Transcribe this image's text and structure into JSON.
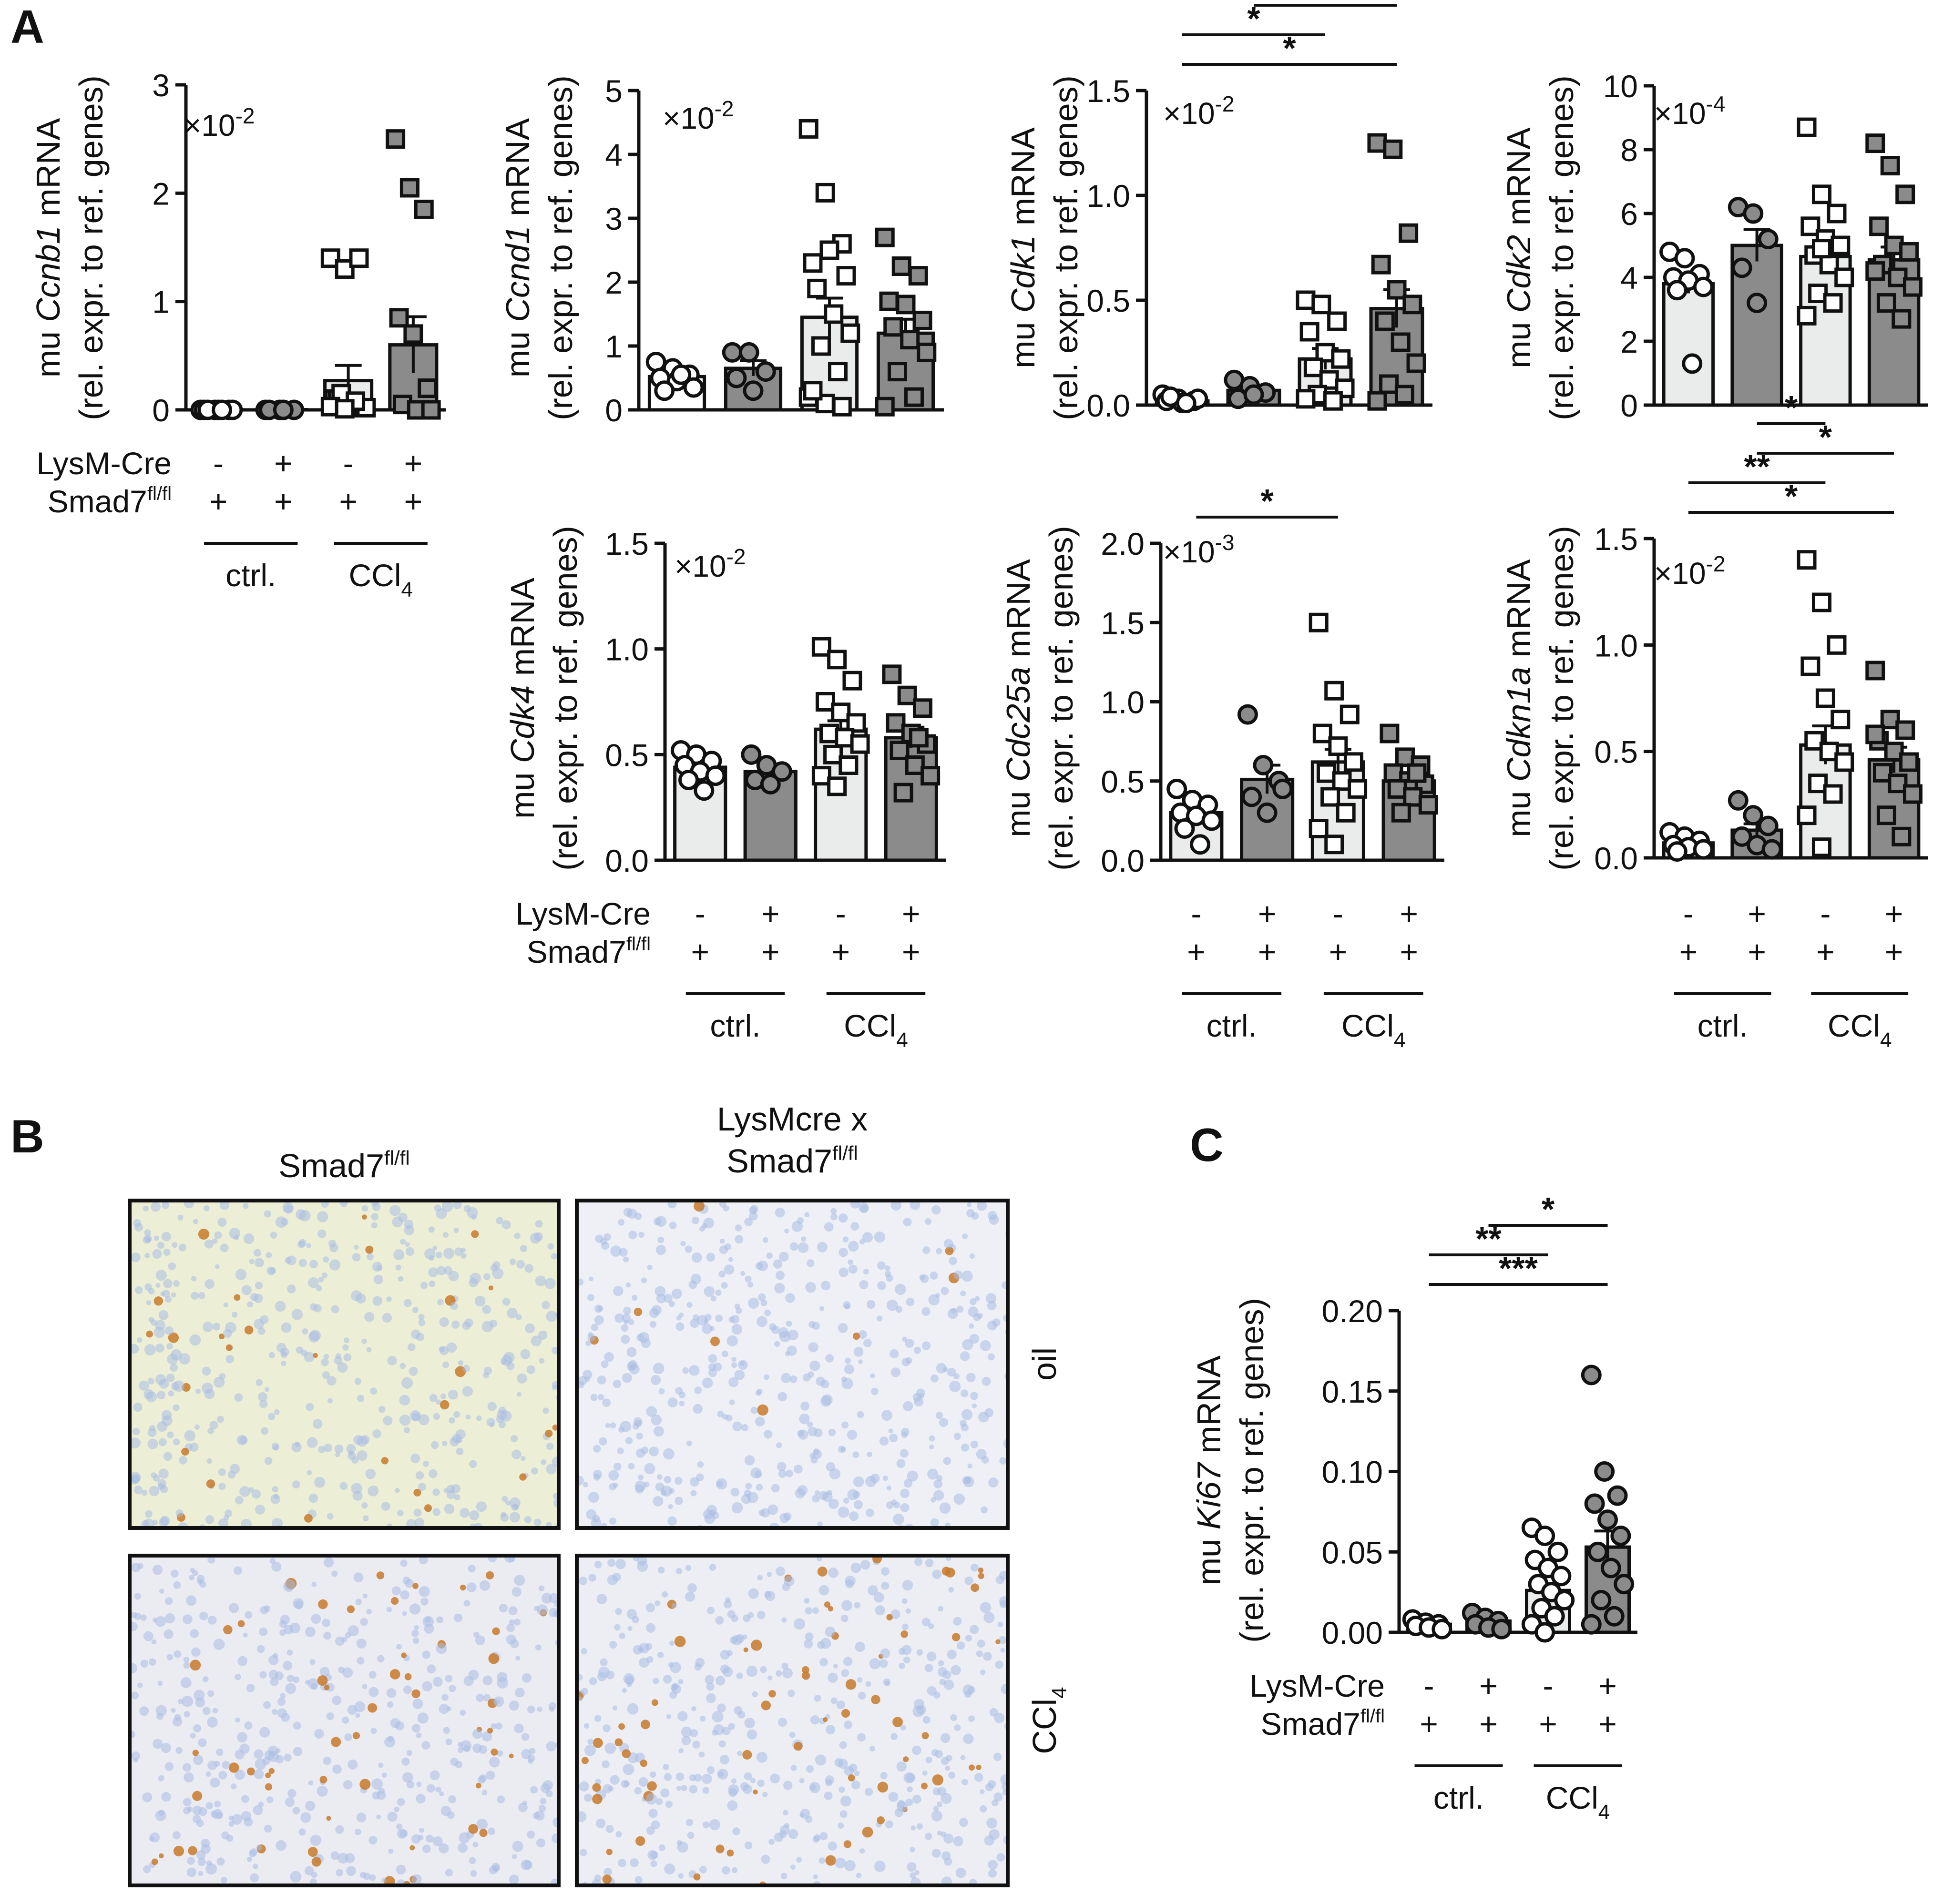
{
  "panels": {
    "a": "A",
    "b": "B",
    "c": "C"
  },
  "colors": {
    "open": "#ffffff",
    "light_bar": "#eaeceb",
    "dark_bar": "#8b8b8b",
    "line": "#111111"
  },
  "chart_data": [
    {
      "id": "ccnb1",
      "type": "bar",
      "gene": "Ccnb1",
      "ylabel_prefix": "mu ",
      "ylabel_suffix": " mRNA",
      "ylabel2": "(rel. expr. to ref. genes)",
      "scale_base": "×10",
      "scale_exp": "-2",
      "ylim": [
        0,
        3
      ],
      "ticks": [
        "0",
        "1",
        "2",
        "3"
      ],
      "groups": [
        "-/+",
        "+/+",
        "-/+ CCl4",
        "+/+ CCl4"
      ],
      "means": [
        0.002,
        0.002,
        0.27,
        0.6
      ],
      "sem": [
        0.001,
        0.001,
        0.14,
        0.26
      ],
      "points": [
        [
          0,
          0,
          0,
          0,
          0,
          0,
          0,
          0
        ],
        [
          0,
          0,
          0,
          0,
          0
        ],
        [
          1.4,
          1.3,
          1.4,
          0.1,
          0.05,
          0.02,
          0.1,
          0.05,
          0.02,
          0.15,
          0.08,
          0.03,
          0.01
        ],
        [
          2.5,
          2.05,
          1.85,
          0.85,
          0.7,
          0.2,
          0.05,
          0,
          0
        ]
      ],
      "sig": []
    },
    {
      "id": "ccnd1",
      "type": "bar",
      "gene": "Ccnd1",
      "ylabel_prefix": "mu ",
      "ylabel_suffix": " mRNA",
      "ylabel2": "(rel. expr. to ref. genes)",
      "scale_base": "×10",
      "scale_exp": "-2",
      "ylim": [
        0,
        5
      ],
      "ticks": [
        "0",
        "1",
        "2",
        "3",
        "4",
        "5"
      ],
      "groups": [
        "-/+",
        "+/+",
        "-/+ CCl4",
        "+/+ CCl4"
      ],
      "means": [
        0.52,
        0.65,
        1.45,
        1.2
      ],
      "sem": [
        0.08,
        0.12,
        0.3,
        0.22
      ],
      "points": [
        [
          0.75,
          0.65,
          0.55,
          0.5,
          0.45,
          0.35,
          0.3,
          0.55
        ],
        [
          0.9,
          0.9,
          0.6,
          0.5,
          0.3
        ],
        [
          4.4,
          3.4,
          2.6,
          2.3,
          2.5,
          2.1,
          1.9,
          1.5,
          1.2,
          1.0,
          0.6,
          0.2,
          0.1,
          0.05,
          0.3
        ],
        [
          2.7,
          2.25,
          2.1,
          1.7,
          1.65,
          1.4,
          1.3,
          1.1,
          0.9,
          0.6,
          0.2,
          0.05
        ]
      ],
      "sig": []
    },
    {
      "id": "cdk1",
      "type": "bar",
      "gene": "Cdk1",
      "ylabel_prefix": "mu ",
      "ylabel_suffix": " mRNA",
      "ylabel2": "(rel. expr. to ref. genes)",
      "scale_base": "×10",
      "scale_exp": "-2",
      "ylim": [
        0,
        1.5
      ],
      "ticks": [
        "0.0",
        "0.5",
        "1.0",
        "1.5"
      ],
      "groups": [
        "-/+",
        "+/+",
        "-/+ CCl4",
        "+/+ CCl4"
      ],
      "means": [
        0.02,
        0.07,
        0.22,
        0.46
      ],
      "sem": [
        0.005,
        0.02,
        0.05,
        0.09
      ],
      "points": [
        [
          0.05,
          0.03,
          0.02,
          0.02,
          0.01,
          0.03,
          0.04,
          0.01
        ],
        [
          0.12,
          0.09,
          0.06,
          0.03,
          0.05
        ],
        [
          0.5,
          0.48,
          0.4,
          0.35,
          0.25,
          0.22,
          0.18,
          0.12,
          0.08,
          0.05,
          0.02,
          0.03
        ],
        [
          1.25,
          1.22,
          0.82,
          0.67,
          0.55,
          0.48,
          0.4,
          0.3,
          0.2,
          0.1,
          0.05,
          0.02
        ]
      ],
      "sig": [
        {
          "a": 0,
          "b": 3,
          "text": "*"
        },
        {
          "a": 0,
          "b": 2,
          "text": "*"
        },
        {
          "a": 1,
          "b": 3,
          "text": "*"
        }
      ]
    },
    {
      "id": "cdk2",
      "type": "bar",
      "gene": "Cdk2",
      "ylabel_prefix": "mu ",
      "ylabel_suffix": " mRNA",
      "ylabel2": "(rel. expr. to ref. genes)",
      "scale_base": "×10",
      "scale_exp": "-4",
      "ylim": [
        0,
        10
      ],
      "ticks": [
        "0",
        "2",
        "4",
        "6",
        "8",
        "10"
      ],
      "groups": [
        "-/+",
        "+/+",
        "-/+ CCl4",
        "+/+ CCl4"
      ],
      "means": [
        3.8,
        5.0,
        4.65,
        4.55
      ],
      "sem": [
        0.3,
        0.5,
        0.35,
        0.4
      ],
      "points": [
        [
          4.8,
          4.6,
          4.1,
          4.0,
          3.9,
          3.7,
          3.6,
          1.3
        ],
        [
          6.2,
          6.0,
          5.2,
          4.3,
          3.2
        ],
        [
          8.7,
          6.6,
          6.0,
          5.6,
          5.2,
          5.0,
          4.7,
          4.4,
          4.0,
          3.5,
          3.2,
          2.8,
          4.9
        ],
        [
          8.2,
          7.5,
          6.6,
          5.6,
          5.0,
          4.8,
          4.4,
          4.0,
          3.7,
          3.2,
          2.7,
          4.2
        ]
      ],
      "sig": []
    },
    {
      "id": "cdk4",
      "type": "bar",
      "gene": "Cdk4",
      "ylabel_prefix": "mu ",
      "ylabel_suffix": " mRNA",
      "ylabel2": "(rel. expr. to ref. genes)",
      "scale_base": "×10",
      "scale_exp": "-2",
      "ylim": [
        0,
        1.5
      ],
      "ticks": [
        "0.0",
        "0.5",
        "1.0",
        "1.5"
      ],
      "groups": [
        "-/+",
        "+/+",
        "-/+ CCl4",
        "+/+ CCl4"
      ],
      "means": [
        0.44,
        0.42,
        0.62,
        0.58
      ],
      "sem": [
        0.03,
        0.03,
        0.04,
        0.05
      ],
      "points": [
        [
          0.52,
          0.5,
          0.47,
          0.45,
          0.42,
          0.4,
          0.38,
          0.33
        ],
        [
          0.5,
          0.45,
          0.42,
          0.38,
          0.36
        ],
        [
          1.01,
          0.95,
          0.85,
          0.75,
          0.7,
          0.65,
          0.6,
          0.58,
          0.55,
          0.5,
          0.45,
          0.4,
          0.35
        ],
        [
          0.88,
          0.78,
          0.72,
          0.65,
          0.6,
          0.55,
          0.52,
          0.45,
          0.4,
          0.32,
          0.58
        ]
      ],
      "sig": []
    },
    {
      "id": "cdc25a",
      "type": "bar",
      "gene": "Cdc25a",
      "ylabel_prefix": "mu ",
      "ylabel_suffix": " mRNA",
      "ylabel2": "(rel. expr. to ref. genes)",
      "scale_base": "×10",
      "scale_exp": "-3",
      "ylim": [
        0,
        2.0
      ],
      "ticks": [
        "0.0",
        "0.5",
        "1.0",
        "1.5",
        "2.0"
      ],
      "groups": [
        "-/+",
        "+/+",
        "-/+ CCl4",
        "+/+ CCl4"
      ],
      "means": [
        0.3,
        0.51,
        0.62,
        0.5
      ],
      "sem": [
        0.04,
        0.09,
        0.08,
        0.04
      ],
      "points": [
        [
          0.45,
          0.38,
          0.35,
          0.3,
          0.28,
          0.25,
          0.2,
          0.1
        ],
        [
          0.92,
          0.6,
          0.5,
          0.4,
          0.3,
          0.45
        ],
        [
          1.5,
          1.07,
          0.92,
          0.8,
          0.72,
          0.62,
          0.55,
          0.5,
          0.45,
          0.4,
          0.3,
          0.2,
          0.1
        ],
        [
          0.8,
          0.65,
          0.6,
          0.55,
          0.5,
          0.48,
          0.45,
          0.4,
          0.35,
          0.3,
          0.55
        ]
      ],
      "sig": [
        {
          "a": 0,
          "b": 2,
          "text": "*"
        }
      ]
    },
    {
      "id": "cdkn1a",
      "type": "bar",
      "gene": "Cdkn1a",
      "ylabel_prefix": "mu ",
      "ylabel_suffix": " mRNA",
      "ylabel2": "(rel. expr. to ref. genes)",
      "scale_base": "×10",
      "scale_exp": "-2",
      "ylim": [
        0,
        1.5
      ],
      "ticks": [
        "0.0",
        "0.5",
        "1.0",
        "1.5"
      ],
      "groups": [
        "-/+",
        "+/+",
        "-/+ CCl4",
        "+/+ CCl4"
      ],
      "means": [
        0.07,
        0.13,
        0.53,
        0.46
      ],
      "sem": [
        0.02,
        0.03,
        0.09,
        0.06
      ],
      "points": [
        [
          0.12,
          0.1,
          0.08,
          0.06,
          0.05,
          0.04,
          0.03
        ],
        [
          0.27,
          0.2,
          0.15,
          0.1,
          0.06,
          0.04
        ],
        [
          1.4,
          1.2,
          1.0,
          0.9,
          0.75,
          0.65,
          0.55,
          0.5,
          0.45,
          0.35,
          0.3,
          0.2,
          0.05
        ],
        [
          0.88,
          0.65,
          0.6,
          0.55,
          0.5,
          0.45,
          0.4,
          0.35,
          0.3,
          0.2,
          0.1,
          0.58
        ]
      ],
      "sig": [
        {
          "a": 0,
          "b": 3,
          "text": "*"
        },
        {
          "a": 0,
          "b": 2,
          "text": "**"
        },
        {
          "a": 1,
          "b": 3,
          "text": "*"
        },
        {
          "a": 1,
          "b": 2,
          "text": "*"
        }
      ]
    },
    {
      "id": "ki67",
      "type": "bar",
      "gene": "Ki67",
      "ylabel_prefix": "mu ",
      "ylabel_suffix": " mRNA",
      "ylabel2": "(rel. expr. to ref. genes)",
      "scale_base": "",
      "scale_exp": "",
      "ylim": [
        0,
        0.2
      ],
      "ticks": [
        "0.00",
        "0.05",
        "0.10",
        "0.15",
        "0.20"
      ],
      "groups": [
        "-/+",
        "+/+",
        "-/+ CCl4",
        "+/+ CCl4"
      ],
      "means": [
        0.005,
        0.007,
        0.026,
        0.053
      ],
      "sem": [
        0.001,
        0.002,
        0.004,
        0.01
      ],
      "points": [
        [
          0.008,
          0.006,
          0.005,
          0.004,
          0.003,
          0.002
        ],
        [
          0.012,
          0.009,
          0.007,
          0.005,
          0.003,
          0.002
        ],
        [
          0.065,
          0.06,
          0.05,
          0.045,
          0.04,
          0.035,
          0.03,
          0.025,
          0.02,
          0.015,
          0.01,
          0.005,
          0.0
        ],
        [
          0.16,
          0.1,
          0.085,
          0.08,
          0.07,
          0.06,
          0.05,
          0.04,
          0.03,
          0.02,
          0.01,
          0.005
        ]
      ],
      "sig": [
        {
          "a": 0,
          "b": 3,
          "text": "***"
        },
        {
          "a": 0,
          "b": 2,
          "text": "**"
        },
        {
          "a": 1,
          "b": 3,
          "text": "*"
        }
      ]
    }
  ],
  "genotype_table": {
    "row1_label": "LysM-Cre",
    "row2_label": "Smad7",
    "row2_sup": "fl/fl",
    "row1_values": [
      "-",
      "+",
      "-",
      "+"
    ],
    "row2_values": [
      "+",
      "+",
      "+",
      "+"
    ],
    "ctrl_label": "ctrl.",
    "ccl4_base": "CCl",
    "ccl4_sub": "4"
  },
  "panel_b": {
    "col1_label": "Smad7",
    "col1_sup": "fl/fl",
    "col2_line1": "LysMcre x",
    "col2_line2": "Smad7",
    "col2_sup": "fl/fl",
    "row1_label": "oil",
    "row2_base": "CCl",
    "row2_sub": "4",
    "tissue_colors": {
      "tl": "#eceed6",
      "tr": "#eef0f5",
      "bl": "#ebecf2",
      "br": "#eceef3"
    }
  }
}
